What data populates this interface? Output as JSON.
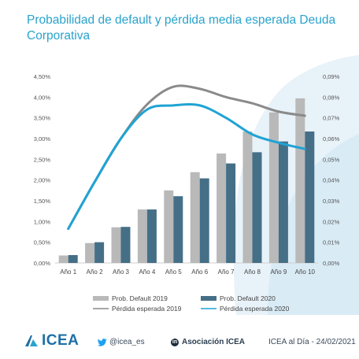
{
  "title": "Probabilidad de default y pérdida media esperada Deuda Corporativa",
  "chart_data": {
    "type": "bar",
    "categories": [
      "Año 1",
      "Año 2",
      "Año 3",
      "Año 4",
      "Año 5",
      "Año 6",
      "Año 7",
      "Año 8",
      "Año 9",
      "Año 10"
    ],
    "ylim": [
      0,
      4.5
    ],
    "y2lim": [
      0,
      0.09
    ],
    "yticks": [
      "0,00%",
      "0,50%",
      "1,00%",
      "1,50%",
      "2,00%",
      "2,50%",
      "3,00%",
      "3,50%",
      "4,00%",
      "4,50%"
    ],
    "y2ticks": [
      "0,00%",
      "0,01%",
      "0,02%",
      "0,03%",
      "0,04%",
      "0,05%",
      "0,06%",
      "0,07%",
      "0,08%",
      "0,09%"
    ],
    "series": [
      {
        "name": "Prob. Default 2019",
        "type": "bar",
        "axis": "left",
        "color": "#b9b9b9",
        "values": [
          0.18,
          0.48,
          0.86,
          1.29,
          1.75,
          2.19,
          2.64,
          3.17,
          3.63,
          3.97
        ]
      },
      {
        "name": "Prob. Default 2020",
        "type": "bar",
        "axis": "left",
        "color": "#456f87",
        "values": [
          0.19,
          0.5,
          0.87,
          1.29,
          1.61,
          2.04,
          2.4,
          2.67,
          2.93,
          3.17
        ]
      },
      {
        "name": "Pérdida esperada 2019",
        "type": "line",
        "axis": "right",
        "color": "#8a8a8a",
        "values": [
          0.0165,
          0.039,
          0.06,
          0.0765,
          0.085,
          0.084,
          0.08,
          0.077,
          0.073,
          0.071
        ]
      },
      {
        "name": "Pérdida esperada 2020",
        "type": "line",
        "axis": "right",
        "color": "#1fa3d4",
        "values": [
          0.0165,
          0.039,
          0.06,
          0.074,
          0.076,
          0.076,
          0.07,
          0.062,
          0.058,
          0.055
        ]
      }
    ],
    "legend_position": "bottom"
  },
  "footer": {
    "logo_text": "ICEA",
    "twitter_handle": "@icea_es",
    "linkedin_badge": "in",
    "linkedin_text": "Asociación ICEA",
    "credit": "ICEA al Día - 24/02/2021"
  },
  "colors": {
    "title": "#29a3cc",
    "logo": "#1f6fa6",
    "background_shape": "#e6f1f8"
  },
  "icons": [
    "icea-logo-icon",
    "twitter-bird-icon",
    "linkedin-icon"
  ]
}
